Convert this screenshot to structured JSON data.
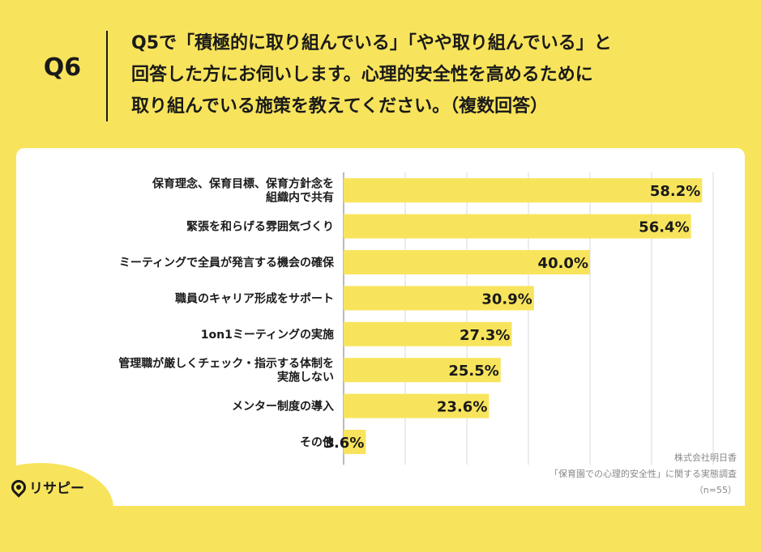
{
  "header": {
    "qlabel": "Q6",
    "question_lines": [
      "Q5で「積極的に取り組んでいる」「やや取り組んでいる」と",
      "回答した方にお伺いします。心理的安全性を高めるために",
      "取り組んでいる施策を教えてください。（複数回答）"
    ]
  },
  "chart_data": {
    "type": "bar",
    "orientation": "horizontal",
    "categories": [
      [
        "保育理念、保育目標、保育方針念を",
        "組織内で共有"
      ],
      [
        "緊張を和らげる雰囲気づくり"
      ],
      [
        "ミーティングで全員が発言する機会の確保"
      ],
      [
        "職員のキャリア形成をサポート"
      ],
      [
        "1on1ミーティングの実施"
      ],
      [
        "管理職が厳しくチェック・指示する体制を",
        "実施しない"
      ],
      [
        "メンター制度の導入"
      ],
      [
        "その他"
      ]
    ],
    "values": [
      58.2,
      56.4,
      40.0,
      30.9,
      27.3,
      25.5,
      23.6,
      3.6
    ],
    "value_labels": [
      "58.2%",
      "56.4%",
      "40.0%",
      "30.9%",
      "27.3%",
      "25.5%",
      "23.6%",
      "3.6%"
    ],
    "xlim": [
      0,
      60
    ],
    "grid": true,
    "bar_color": "#f8e45c"
  },
  "source": {
    "line1": "株式会社明日香",
    "line2": "「保育園での心理的安全性」に関する実態調査",
    "line3": "（n=55）"
  },
  "logo": {
    "text": "リサピー"
  }
}
